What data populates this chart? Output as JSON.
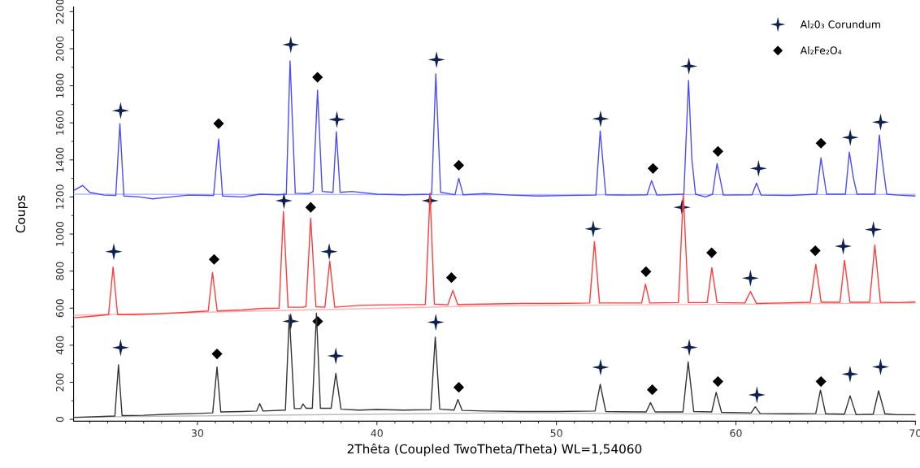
{
  "chart_data": {
    "type": "line",
    "xlabel": "2Thêta (Coupled TwoTheta/Theta) WL=1,54060",
    "ylabel": "Coups",
    "xlim": [
      23.1,
      70
    ],
    "ylim": [
      -10,
      2225
    ],
    "xticks": [
      30,
      40,
      50,
      60,
      70
    ],
    "yticks": [
      0,
      200,
      400,
      600,
      800,
      1000,
      1200,
      1400,
      1600,
      1800,
      2000,
      2200
    ],
    "grid": false,
    "legend": "top right",
    "marker": "none",
    "line_style": "solid",
    "series": [
      {
        "color": "#b4b8ff",
        "x": [
          23.1,
          46,
          70
        ],
        "values": [
          1215,
          1212,
          1214
        ]
      },
      {
        "color": "#ffb4b4",
        "x": [
          23.1,
          46,
          70
        ],
        "values": [
          562,
          612,
          628
        ]
      },
      {
        "color": "#bbbbbb",
        "x": [
          23.1,
          47,
          70
        ],
        "values": [
          12,
          35,
          24
        ]
      },
      {
        "color": "#4a4aff",
        "x": [
          23.1,
          23.6,
          24.0,
          24.8,
          25.45,
          25.68,
          25.9,
          26.8,
          27.5,
          28.5,
          29.5,
          30.9,
          31.18,
          31.4,
          32.5,
          33.5,
          34.5,
          34.95,
          35.16,
          35.45,
          36.2,
          36.45,
          36.69,
          36.95,
          37.55,
          37.74,
          37.95,
          38.6,
          40,
          41.5,
          43.05,
          43.28,
          43.55,
          44.35,
          44.56,
          44.8,
          46,
          47.5,
          49,
          50.5,
          52.2,
          52.44,
          52.75,
          54,
          55.05,
          55.3,
          55.6,
          57.1,
          57.36,
          57.55,
          57.75,
          58.3,
          58.7,
          58.95,
          59.3,
          60.9,
          61.15,
          61.4,
          63,
          64.5,
          64.74,
          65.05,
          66.1,
          66.32,
          66.55,
          66.75,
          67.75,
          67.99,
          68.15,
          68.4,
          69,
          70
        ],
        "values": [
          1235,
          1262,
          1225,
          1210,
          1208,
          1596,
          1205,
          1200,
          1190,
          1200,
          1210,
          1208,
          1512,
          1205,
          1200,
          1215,
          1212,
          1215,
          1934,
          1220,
          1218,
          1230,
          1776,
          1230,
          1225,
          1552,
          1225,
          1230,
          1215,
          1212,
          1215,
          1864,
          1225,
          1212,
          1301,
          1212,
          1218,
          1210,
          1205,
          1208,
          1210,
          1556,
          1212,
          1210,
          1212,
          1288,
          1210,
          1215,
          1829,
          1400,
          1215,
          1200,
          1215,
          1380,
          1210,
          1212,
          1275,
          1210,
          1208,
          1215,
          1411,
          1215,
          1215,
          1442,
          1300,
          1215,
          1215,
          1534,
          1400,
          1215,
          1210,
          1205
        ]
      },
      {
        "color": "#ff3b3b",
        "x": [
          23.1,
          24,
          25.05,
          25.3,
          25.55,
          26.5,
          28,
          29.5,
          30.6,
          30.84,
          31.1,
          32.5,
          33.5,
          34.55,
          34.79,
          35.05,
          35.9,
          36.05,
          36.31,
          36.6,
          37.1,
          37.37,
          37.65,
          39,
          40,
          42.7,
          42.96,
          43.2,
          43.95,
          44.23,
          44.5,
          46,
          48,
          50,
          51.85,
          52.12,
          52.4,
          54.75,
          54.96,
          55.2,
          56.8,
          57.07,
          57.35,
          58.4,
          58.66,
          58.95,
          60.5,
          60.81,
          61.15,
          62.5,
          64.15,
          64.45,
          64.75,
          65.8,
          66.05,
          66.35,
          67.45,
          67.74,
          68.05,
          69,
          70
        ],
        "values": [
          548,
          555,
          565,
          822,
          565,
          565,
          570,
          578,
          585,
          793,
          585,
          590,
          598,
          600,
          1122,
          605,
          605,
          610,
          1086,
          608,
          605,
          854,
          605,
          615,
          617,
          620,
          1218,
          622,
          618,
          696,
          620,
          622,
          625,
          625,
          628,
          959,
          628,
          628,
          730,
          628,
          630,
          1218,
          630,
          630,
          818,
          630,
          628,
          690,
          625,
          628,
          632,
          836,
          632,
          632,
          858,
          632,
          632,
          941,
          632,
          630,
          633
        ]
      },
      {
        "color": "#333333",
        "x": [
          23.1,
          24.5,
          25.4,
          25.6,
          25.8,
          27,
          28.5,
          30,
          30.85,
          31.09,
          31.3,
          32.5,
          33.3,
          33.47,
          33.65,
          34.9,
          35.12,
          35.4,
          35.75,
          35.88,
          36.05,
          36.4,
          36.63,
          36.85,
          37.45,
          37.71,
          38.0,
          39,
          40,
          41.5,
          43.0,
          43.25,
          43.5,
          44.3,
          44.51,
          44.75,
          46,
          48,
          50,
          52.15,
          52.44,
          52.75,
          55.0,
          55.24,
          55.5,
          57.05,
          57.34,
          57.65,
          58.65,
          58.9,
          59.2,
          60.85,
          61.08,
          61.35,
          63,
          64.45,
          64.71,
          65.0,
          66.05,
          66.36,
          66.7,
          67.65,
          67.95,
          68.3,
          69,
          70
        ],
        "values": [
          10,
          15,
          18,
          294,
          20,
          22,
          28,
          32,
          35,
          283,
          40,
          42,
          45,
          85,
          45,
          50,
          563,
          58,
          58,
          83,
          60,
          60,
          573,
          60,
          60,
          248,
          55,
          50,
          53,
          50,
          52,
          444,
          55,
          50,
          107,
          48,
          45,
          42,
          42,
          45,
          189,
          42,
          40,
          90,
          40,
          40,
          310,
          42,
          40,
          146,
          38,
          35,
          68,
          32,
          30,
          32,
          158,
          30,
          28,
          127,
          25,
          28,
          154,
          30,
          25,
          25
        ]
      },
      {
        "type": "scatter",
        "name": "Al₂0₃ Corundum",
        "marker": "star",
        "color": "#0d2050",
        "x": [
          25.72,
          35.2,
          37.77,
          43.32,
          52.46,
          57.38,
          61.26,
          66.37,
          68.06,
          25.34,
          34.82,
          37.34,
          42.96,
          52.05,
          57.0,
          60.81,
          65.98,
          67.66,
          25.72,
          35.2,
          37.71,
          43.28,
          52.46,
          57.4,
          61.17,
          66.36,
          68.06
        ],
        "values": [
          1666,
          2022,
          1618,
          1941,
          1622,
          1906,
          1354,
          1521,
          1604,
          905,
          1180,
          905,
          1180,
          1028,
          1144,
          762,
          934,
          1024,
          387,
          529,
          342,
          524,
          281,
          388,
          132,
          244,
          283
        ]
      },
      {
        "type": "scatter",
        "name": "Al₂Fe₂O₄",
        "marker": "diamond",
        "color": "#000000",
        "x": [
          31.18,
          36.69,
          44.56,
          55.38,
          59.0,
          64.74,
          30.93,
          36.31,
          44.15,
          54.99,
          58.65,
          64.42,
          31.09,
          36.7,
          44.56,
          55.34,
          59.0,
          64.74
        ],
        "values": [
          1596,
          1846,
          1371,
          1354,
          1446,
          1490,
          863,
          1144,
          765,
          797,
          899,
          910,
          353,
          529,
          173,
          160,
          204,
          204
        ]
      }
    ]
  }
}
